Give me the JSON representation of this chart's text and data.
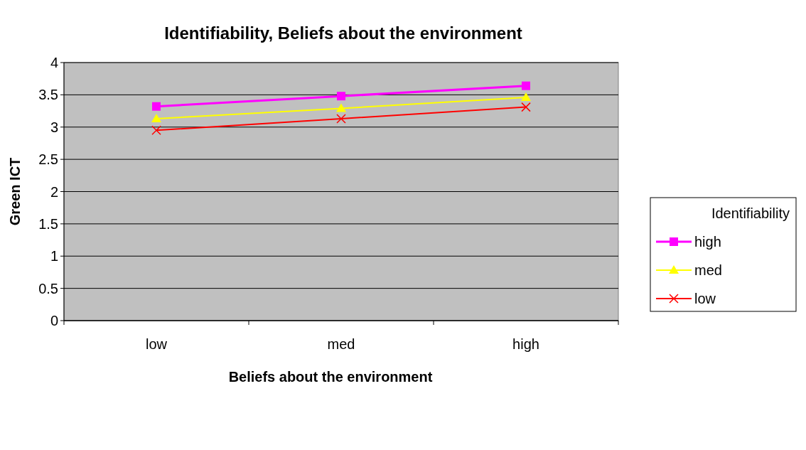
{
  "chart_data": {
    "type": "line",
    "title": "Identifiability, Beliefs about the environment",
    "xlabel": "Beliefs about the environment",
    "ylabel": "Green ICT",
    "legend_title": "Identifiability",
    "legend": "right",
    "grid": "y",
    "categories": [
      "low",
      "med",
      "high"
    ],
    "ylim": [
      0,
      4
    ],
    "yticks": [
      0,
      {
        "value": 0.5,
        "label": "0.5"
      },
      1,
      {
        "value": 1.5,
        "label": "1.5"
      },
      2,
      {
        "value": 2.5,
        "label": "2.5"
      },
      3,
      {
        "value": 3.5,
        "label": "3.5"
      },
      4
    ],
    "series": [
      {
        "name": "high",
        "color": "#ff00ff",
        "marker": "square",
        "values": [
          3.32,
          3.48,
          3.64
        ]
      },
      {
        "name": "med",
        "color": "#ffff00",
        "marker": "triangle",
        "values": [
          3.13,
          3.29,
          3.46
        ]
      },
      {
        "name": "low",
        "color": "#ff0000",
        "marker": "cross",
        "values": [
          2.95,
          3.13,
          3.31
        ]
      }
    ]
  }
}
